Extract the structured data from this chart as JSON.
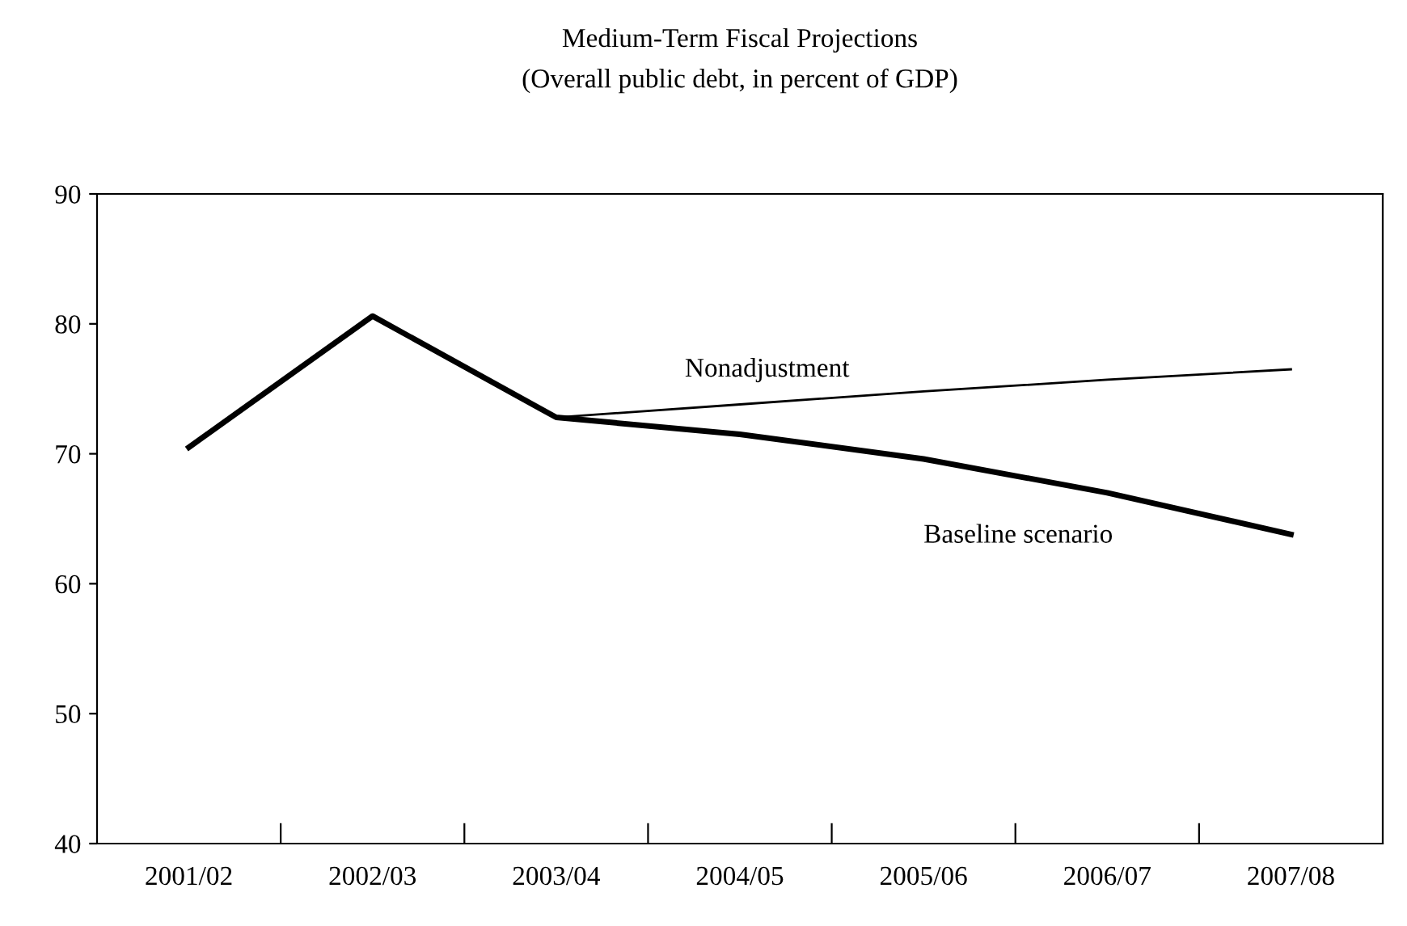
{
  "chart_data": {
    "type": "line",
    "title": "Medium-Term Fiscal Projections",
    "subtitle": "(Overall public debt, in percent of GDP)",
    "categories": [
      "2001/02",
      "2002/03",
      "2003/04",
      "2004/05",
      "2005/06",
      "2006/07",
      "2007/08"
    ],
    "series": [
      {
        "name": "Baseline scenario",
        "color": "#000000",
        "values": [
          70.5,
          80.6,
          72.8,
          71.5,
          69.6,
          67.0,
          63.8
        ]
      },
      {
        "name": "Nonadjustment",
        "color": "#000000",
        "values": [
          null,
          null,
          72.8,
          73.8,
          74.8,
          75.7,
          76.5
        ]
      }
    ],
    "ylim": [
      40,
      90
    ],
    "yticks": [
      40,
      50,
      60,
      70,
      80,
      90
    ],
    "grid": false,
    "legend": false,
    "marker": "none",
    "line_style": "solid"
  }
}
